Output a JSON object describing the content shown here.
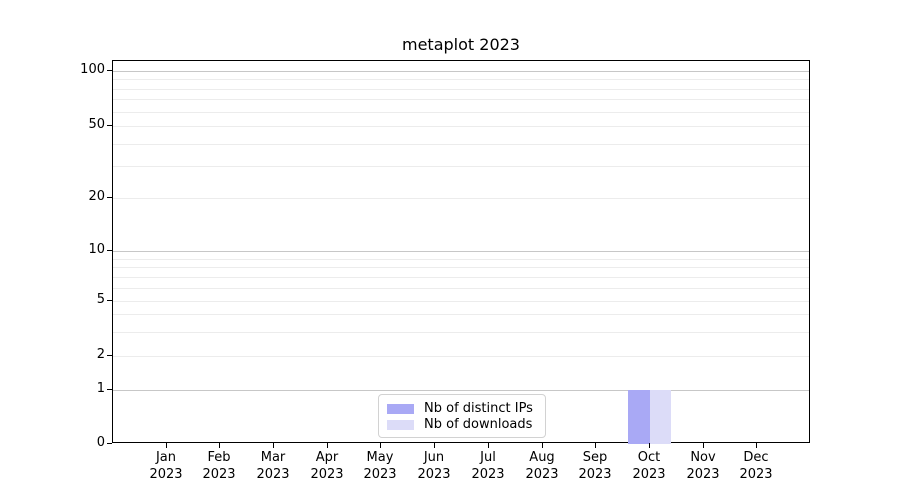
{
  "figure": {
    "title": "metaplot 2023"
  },
  "chart_data": {
    "type": "bar",
    "title": "metaplot 2023",
    "categories": [
      "Jan 2023",
      "Feb 2023",
      "Mar 2023",
      "Apr 2023",
      "May 2023",
      "Jun 2023",
      "Jul 2023",
      "Aug 2023",
      "Sep 2023",
      "Oct 2023",
      "Nov 2023",
      "Dec 2023"
    ],
    "series": [
      {
        "name": "Nb of distinct IPs",
        "values": [
          0,
          0,
          0,
          0,
          0,
          0,
          0,
          0,
          0,
          1,
          0,
          0
        ],
        "color": "#a9a9f5"
      },
      {
        "name": "Nb of downloads",
        "values": [
          0,
          0,
          0,
          0,
          0,
          0,
          0,
          0,
          0,
          1,
          0,
          0
        ],
        "color": "#dcdcf8"
      }
    ],
    "yscale": "symlog",
    "ylim": [
      0,
      114
    ],
    "yticks_major": [
      0,
      1,
      2,
      5,
      10,
      20,
      50,
      100
    ],
    "yticks_minor": [
      3,
      4,
      6,
      7,
      8,
      9,
      30,
      40,
      60,
      70,
      80,
      90
    ],
    "grid_decades": [
      1,
      10,
      100
    ],
    "grid": "horizontal-major-and-minor",
    "legend_position": "lower-center",
    "xlabel": "",
    "ylabel": ""
  },
  "legend": {
    "items": [
      {
        "label": "Nb of distinct IPs",
        "color": "#a9a9f5"
      },
      {
        "label": "Nb of downloads",
        "color": "#dcdcf8"
      }
    ]
  },
  "colors": {
    "grid_decade": "#c7c7c7",
    "grid_minor": "#ececec",
    "axis": "#000000",
    "background": "#ffffff"
  }
}
